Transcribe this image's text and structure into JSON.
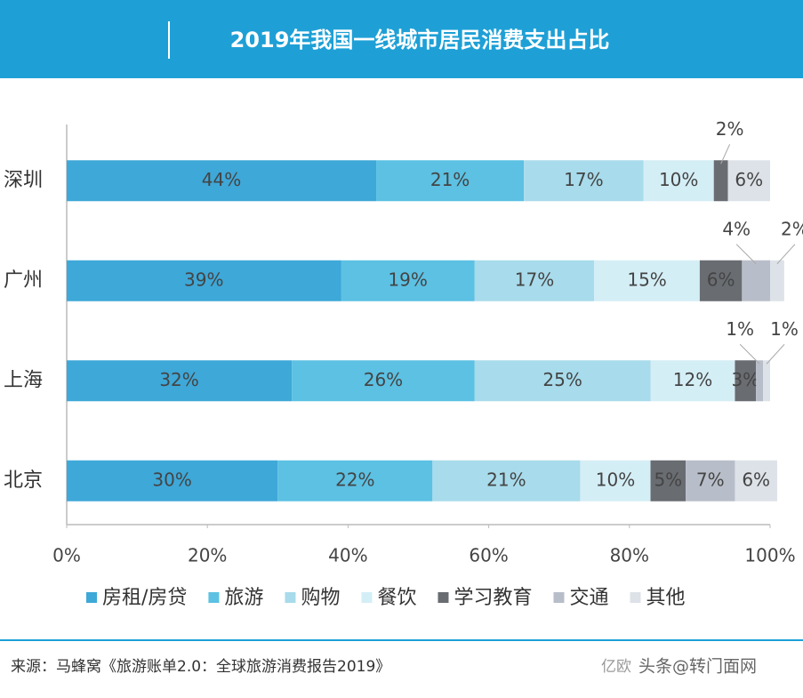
{
  "chart_data": {
    "type": "stacked_bar_h",
    "title": "2019年我国一线城市居民消费支出占比",
    "categories": [
      "深圳",
      "广州",
      "上海",
      "北京"
    ],
    "series": [
      {
        "name": "房租/房贷",
        "color": "#3ea8d8",
        "values": [
          44,
          39,
          32,
          30
        ],
        "value_labels": [
          "44%",
          "39%",
          "32%",
          "30%"
        ]
      },
      {
        "name": "旅游",
        "color": "#5cc1e3",
        "values": [
          21,
          19,
          26,
          22
        ],
        "value_labels": [
          "21%",
          "19%",
          "26%",
          "22%"
        ]
      },
      {
        "name": "购物",
        "color": "#a8dbeb",
        "values": [
          17,
          17,
          25,
          21
        ],
        "value_labels": [
          "17%",
          "17%",
          "25%",
          "21%"
        ]
      },
      {
        "name": "餐饮",
        "color": "#d4eef6",
        "values": [
          10,
          15,
          12,
          10
        ],
        "value_labels": [
          "10%",
          "15%",
          "12%",
          "10%"
        ]
      },
      {
        "name": "学习教育",
        "color": "#696c71",
        "values": [
          2,
          6,
          3,
          5
        ],
        "value_labels": [
          "2%",
          "6%",
          "3%",
          "5%"
        ]
      },
      {
        "name": "交通",
        "color": "#b8bec9",
        "values": [
          null,
          4,
          1,
          7
        ],
        "value_labels": [
          null,
          "4%",
          "1%",
          "7%"
        ]
      },
      {
        "name": "其他",
        "color": "#dde2e8",
        "values": [
          6,
          2,
          1,
          6
        ],
        "value_labels": [
          "6%",
          "2%",
          "1%",
          "6%"
        ]
      }
    ],
    "xlim": [
      0,
      100
    ],
    "xticks": [
      {
        "value": 0,
        "label": "0%"
      },
      {
        "value": 20,
        "label": "20%"
      },
      {
        "value": 40,
        "label": "40%"
      },
      {
        "value": 60,
        "label": "60%"
      },
      {
        "value": 80,
        "label": "80%"
      },
      {
        "value": 100,
        "label": "100%"
      }
    ],
    "legend": "bottom",
    "source": "来源：马蜂窝《旅游账单2.0：全球旅游消费报告2019》",
    "watermark": [
      "亿欧",
      "头条@转门面网"
    ]
  }
}
